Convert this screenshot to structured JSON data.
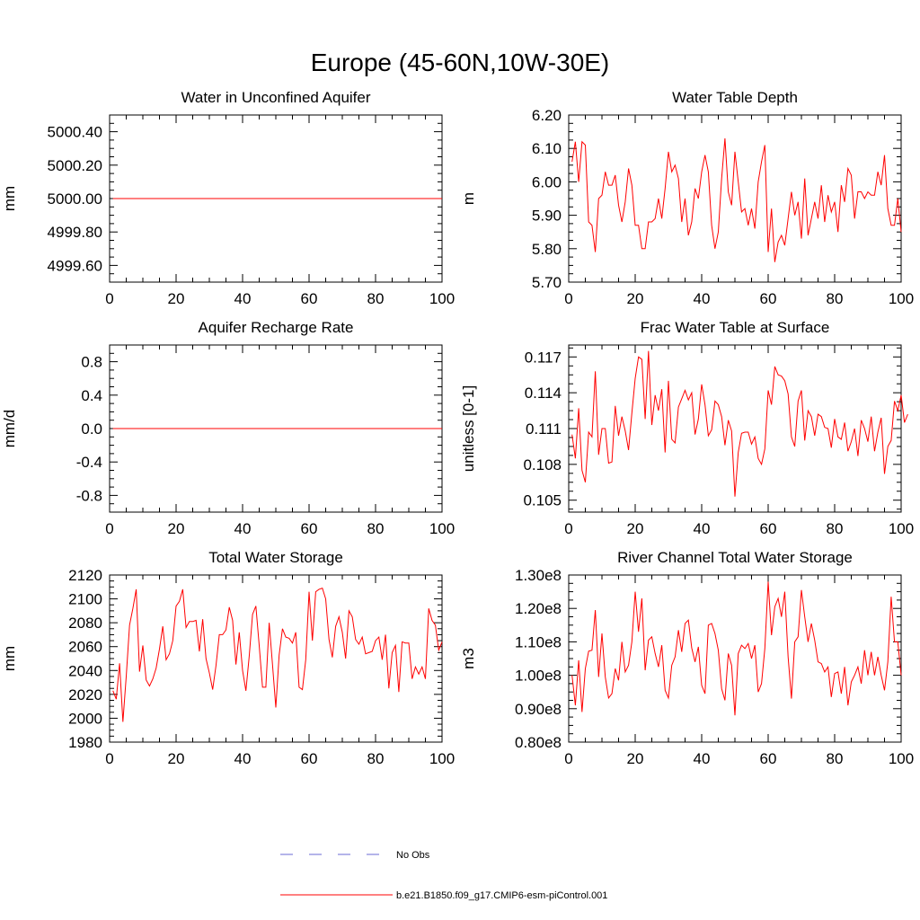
{
  "title": "Europe (45-60N,10W-30E)",
  "legend": {
    "entries": [
      {
        "label": "No Obs",
        "color": "#6a6ad6",
        "style": "dashed"
      },
      {
        "label": "b.e21.B1850.f09_g17.CMIP6-esm-piControl.001",
        "color": "#ff0000",
        "style": "solid"
      }
    ]
  },
  "chart_data": [
    {
      "type": "line",
      "title": "Water in Unconfined Aquifer",
      "xlabel": "",
      "ylabel": "mm",
      "xlim": [
        0,
        100
      ],
      "ylim": [
        4999.5,
        5000.5
      ],
      "xticks": [
        0,
        20,
        40,
        60,
        80,
        100
      ],
      "xtick_labels": [
        "0",
        "20",
        "40",
        "60",
        "80",
        "100"
      ],
      "yticks": [
        4999.6,
        4999.8,
        5000.0,
        5000.2,
        5000.4
      ],
      "ytick_labels": [
        "4999.60",
        "4999.80",
        "5000.00",
        "5000.20",
        "5000.40"
      ],
      "series": [
        {
          "color": "#ff0000",
          "x": [
            1,
            100
          ],
          "y": [
            5000.0,
            5000.0
          ]
        }
      ]
    },
    {
      "type": "line",
      "title": "Water Table Depth",
      "xlabel": "",
      "ylabel": "m",
      "xlim": [
        0,
        100
      ],
      "ylim": [
        5.7,
        6.2
      ],
      "xticks": [
        0,
        20,
        40,
        60,
        80,
        100
      ],
      "xtick_labels": [
        "0",
        "20",
        "40",
        "60",
        "80",
        "100"
      ],
      "yticks": [
        5.7,
        5.8,
        5.9,
        6.0,
        6.1,
        6.2
      ],
      "ytick_labels": [
        "5.70",
        "5.80",
        "5.90",
        "6.00",
        "6.10",
        "6.20"
      ],
      "series": [
        {
          "color": "#ff0000",
          "x_start": 1,
          "y": [
            6.06,
            6.12,
            6.0,
            6.12,
            6.11,
            5.88,
            5.87,
            5.79,
            5.95,
            5.96,
            6.03,
            5.99,
            5.99,
            6.02,
            5.93,
            5.88,
            5.94,
            6.04,
            5.99,
            5.87,
            5.87,
            5.8,
            5.8,
            5.88,
            5.88,
            5.89,
            5.95,
            5.89,
            5.98,
            6.09,
            6.03,
            6.05,
            6.01,
            5.88,
            5.95,
            5.84,
            5.88,
            5.98,
            5.95,
            6.03,
            6.08,
            6.03,
            5.87,
            5.8,
            5.85,
            6.01,
            6.13,
            5.97,
            5.93,
            6.09,
            6.0,
            5.91,
            5.92,
            5.87,
            5.92,
            5.86,
            6.0,
            6.06,
            6.11,
            5.79,
            5.92,
            5.76,
            5.82,
            5.84,
            5.81,
            5.89,
            5.97,
            5.9,
            5.94,
            5.83,
            6.01,
            5.84,
            5.89,
            5.94,
            5.89,
            5.99,
            5.88,
            5.96,
            5.91,
            5.94,
            5.85,
            5.99,
            5.94,
            6.04,
            6.02,
            5.89,
            5.97,
            5.97,
            5.95,
            5.97,
            5.96,
            5.96,
            6.03,
            5.99,
            6.08,
            5.92,
            5.87,
            5.87,
            5.95,
            5.85
          ]
        }
      ]
    },
    {
      "type": "line",
      "title": "Aquifer Recharge Rate",
      "xlabel": "",
      "ylabel": "mm/d",
      "xlim": [
        0,
        100
      ],
      "ylim": [
        -1.0,
        1.0
      ],
      "xticks": [
        0,
        20,
        40,
        60,
        80,
        100
      ],
      "xtick_labels": [
        "0",
        "20",
        "40",
        "60",
        "80",
        "100"
      ],
      "yticks": [
        -0.8,
        -0.4,
        0.0,
        0.4,
        0.8
      ],
      "ytick_labels": [
        "-0.8",
        "-0.4",
        "0.0",
        "0.4",
        "0.8"
      ],
      "series": [
        {
          "color": "#ff0000",
          "x": [
            1,
            100
          ],
          "y": [
            0.0,
            0.0
          ]
        }
      ]
    },
    {
      "type": "line",
      "title": "Frac Water Table at Surface",
      "xlabel": "",
      "ylabel": "unitless [0-1]",
      "xlim": [
        0,
        100
      ],
      "ylim": [
        0.104,
        0.118
      ],
      "xticks": [
        0,
        20,
        40,
        60,
        80,
        100
      ],
      "xtick_labels": [
        "0",
        "20",
        "40",
        "60",
        "80",
        "100"
      ],
      "yticks": [
        0.105,
        0.108,
        0.111,
        0.114,
        0.117
      ],
      "ytick_labels": [
        "0.105",
        "0.108",
        "0.111",
        "0.114",
        "0.117"
      ],
      "series": [
        {
          "color": "#ff0000",
          "x_start": 1,
          "y": [
            0.1105,
            0.1085,
            0.1127,
            0.1075,
            0.1065,
            0.1107,
            0.1103,
            0.1158,
            0.1088,
            0.111,
            0.111,
            0.1081,
            0.1082,
            0.1129,
            0.1104,
            0.112,
            0.1108,
            0.1092,
            0.1123,
            0.1152,
            0.117,
            0.1168,
            0.1118,
            0.1175,
            0.1113,
            0.1138,
            0.1125,
            0.1143,
            0.109,
            0.115,
            0.1101,
            0.1098,
            0.1128,
            0.1135,
            0.1142,
            0.1134,
            0.114,
            0.1105,
            0.1118,
            0.1147,
            0.113,
            0.1104,
            0.1109,
            0.1133,
            0.113,
            0.112,
            0.1096,
            0.1117,
            0.1108,
            0.1053,
            0.109,
            0.1106,
            0.1107,
            0.1107,
            0.1097,
            0.1103,
            0.1085,
            0.108,
            0.1093,
            0.1142,
            0.113,
            0.1162,
            0.1155,
            0.1154,
            0.115,
            0.1139,
            0.1103,
            0.1095,
            0.1133,
            0.1142,
            0.11,
            0.1125,
            0.112,
            0.1104,
            0.1122,
            0.112,
            0.1111,
            0.111,
            0.1094,
            0.1118,
            0.1103,
            0.1101,
            0.1115,
            0.1091,
            0.1099,
            0.111,
            0.1087,
            0.1117,
            0.111,
            0.1099,
            0.112,
            0.1091,
            0.1107,
            0.1119,
            0.1072,
            0.1095,
            0.11,
            0.1133,
            0.1125,
            0.1138,
            0.1115,
            0.1122
          ]
        }
      ]
    },
    {
      "type": "line",
      "title": "Total Water Storage",
      "xlabel": "",
      "ylabel": "mm",
      "xlim": [
        0,
        100
      ],
      "ylim": [
        1980,
        2120
      ],
      "xticks": [
        0,
        20,
        40,
        60,
        80,
        100
      ],
      "xtick_labels": [
        "0",
        "20",
        "40",
        "60",
        "80",
        "100"
      ],
      "yticks": [
        1980,
        2000,
        2020,
        2040,
        2060,
        2080,
        2100,
        2120
      ],
      "ytick_labels": [
        "1980",
        "2000",
        "2020",
        "2040",
        "2060",
        "2080",
        "2100",
        "2120"
      ],
      "series": [
        {
          "color": "#ff0000",
          "x_start": 1,
          "y": [
            2023,
            2016,
            2046,
            1997,
            2035,
            2078,
            2092,
            2108,
            2039,
            2061,
            2032,
            2027,
            2033,
            2042,
            2058,
            2077,
            2049,
            2054,
            2065,
            2094,
            2098,
            2108,
            2076,
            2081,
            2081,
            2082,
            2056,
            2083,
            2050,
            2038,
            2024,
            2044,
            2070,
            2070,
            2074,
            2093,
            2082,
            2045,
            2072,
            2040,
            2023,
            2052,
            2087,
            2094,
            2061,
            2026,
            2026,
            2080,
            2045,
            2009,
            2053,
            2075,
            2068,
            2067,
            2063,
            2072,
            2026,
            2024,
            2049,
            2106,
            2065,
            2106,
            2108,
            2109,
            2100,
            2066,
            2051,
            2077,
            2085,
            2072,
            2050,
            2090,
            2085,
            2066,
            2062,
            2068,
            2054,
            2055,
            2056,
            2065,
            2068,
            2049,
            2070,
            2025,
            2055,
            2061,
            2022,
            2064,
            2063,
            2063,
            2033,
            2043,
            2037,
            2043,
            2033,
            2092,
            2082,
            2078,
            2057,
            2064
          ]
        }
      ]
    },
    {
      "type": "line",
      "title": "River Channel Total Water Storage",
      "xlabel": "",
      "ylabel": "m3",
      "xlim": [
        0,
        100
      ],
      "ylim": [
        80000000.0,
        130000000.0
      ],
      "xticks": [
        0,
        20,
        40,
        60,
        80,
        100
      ],
      "xtick_labels": [
        "0",
        "20",
        "40",
        "60",
        "80",
        "100"
      ],
      "yticks": [
        80000000.0,
        90000000.0,
        100000000.0,
        110000000.0,
        120000000.0,
        130000000.0
      ],
      "ytick_labels": [
        "0.80e8",
        "0.90e8",
        "1.00e8",
        "1.10e8",
        "1.20e8",
        "1.30e8"
      ],
      "series": [
        {
          "color": "#ff0000",
          "x_start": 1,
          "y": [
            100000000.0,
            91000000.0,
            104500000.0,
            89000000.0,
            102000000.0,
            107200000.0,
            107500000.0,
            119500000.0,
            99500000.0,
            112500000.0,
            99500000.0,
            93200000.0,
            94500000.0,
            102000000.0,
            98500000.0,
            110000000.0,
            101000000.0,
            103000000.0,
            110000000.0,
            125000000.0,
            113000000.0,
            123000000.0,
            101500000.0,
            110500000.0,
            111500000.0,
            106500000.0,
            102500000.0,
            109000000.0,
            95500000.0,
            93200000.0,
            103000000.0,
            105500000.0,
            113500000.0,
            107000000.0,
            115500000.0,
            116500000.0,
            108200000.0,
            104000000.0,
            108500000.0,
            97000000.0,
            94500000.0,
            115000000.0,
            115500000.0,
            112500000.0,
            107500000.0,
            96000000.0,
            92500000.0,
            106500000.0,
            103000000.0,
            88000000.0,
            106500000.0,
            109000000.0,
            108000000.0,
            109500000.0,
            105000000.0,
            109000000.0,
            95000000.0,
            97500000.0,
            108000000.0,
            128000000.0,
            112000000.0,
            120500000.0,
            123000000.0,
            117500000.0,
            125000000.0,
            105500000.0,
            93000000.0,
            110000000.0,
            111500000.0,
            125500000.0,
            117500000.0,
            110000000.0,
            115500000.0,
            110500000.0,
            104000000.0,
            103500000.0,
            101000000.0,
            102500000.0,
            93500000.0,
            100500000.0,
            101000000.0,
            94500000.0,
            102500000.0,
            91000000.0,
            98000000.0,
            100000000.0,
            102500000.0,
            97500000.0,
            107500000.0,
            100000000.0,
            107000000.0,
            100000000.0,
            105500000.0,
            100000000.0,
            95500000.0,
            104000000.0,
            123500000.0,
            110000000.0,
            110000000.0,
            100000000.0
          ]
        }
      ]
    }
  ]
}
